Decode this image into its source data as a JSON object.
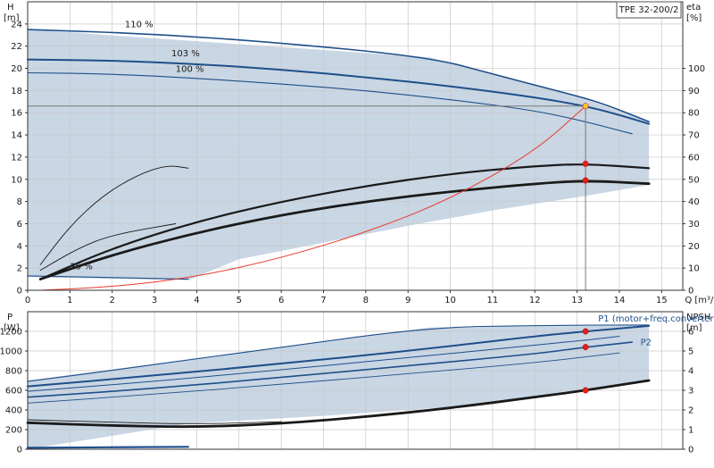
{
  "chart_data": [
    {
      "type": "line",
      "title": "TPE 32-200/2",
      "xlabel": "Q [m³/h]",
      "ylabel": "H\n[m]",
      "y2label": "eta\n[%]",
      "xlim": [
        0,
        15.5
      ],
      "ylim": [
        0,
        26
      ],
      "y2lim": [
        0,
        130
      ],
      "x_ticks": [
        0,
        1,
        2,
        3,
        4,
        5,
        6,
        7,
        8,
        9,
        10,
        11,
        12,
        13,
        14,
        15
      ],
      "y_ticks": [
        0,
        2,
        4,
        6,
        8,
        10,
        12,
        14,
        16,
        18,
        20,
        22,
        24
      ],
      "y2_ticks": [
        0,
        10,
        20,
        30,
        40,
        50,
        60,
        70,
        80,
        90,
        100
      ],
      "grid": true,
      "operating_region": [
        [
          0,
          23.5
        ],
        [
          9.5,
          21
        ],
        [
          13,
          17.5
        ],
        [
          14.7,
          15.2
        ],
        [
          14.7,
          9.5
        ],
        [
          13.2,
          8.5
        ],
        [
          11,
          7.2
        ],
        [
          9,
          5.8
        ],
        [
          7,
          4.3
        ],
        [
          5,
          2.8
        ],
        [
          3.8,
          0.9
        ],
        [
          0,
          1.2
        ]
      ],
      "series": [
        {
          "name": "110 %",
          "x": [
            0,
            3,
            6,
            9.5,
            11,
            12.5,
            13.5,
            14.7
          ],
          "values": [
            23.5,
            23.1,
            22.3,
            21.0,
            19.5,
            18.0,
            17.0,
            15.2
          ],
          "color": "#1e4f8a",
          "width": 1.6
        },
        {
          "name": "103 %",
          "x": [
            0,
            2,
            4,
            6,
            8,
            10,
            12,
            13.2,
            14,
            14.7
          ],
          "values": [
            20.8,
            20.7,
            20.4,
            19.9,
            19.2,
            18.4,
            17.4,
            16.6,
            15.8,
            15.0
          ],
          "color": "#1e4f8a",
          "width": 2
        },
        {
          "name": "100 %",
          "x": [
            0,
            2,
            4,
            6,
            8,
            10,
            12,
            13.2,
            14.3
          ],
          "values": [
            19.6,
            19.5,
            19.1,
            18.6,
            18.0,
            17.2,
            16.2,
            15.2,
            14.1
          ],
          "color": "#1e4f8a",
          "width": 1.1
        },
        {
          "name": "25 %",
          "x": [
            0,
            3.8
          ],
          "values": [
            1.3,
            1.0
          ],
          "color": "#1e4f8a",
          "width": 1.1
        },
        {
          "name": "",
          "x": [
            0.3,
            1,
            1.8,
            2.6,
            3.3,
            3.8
          ],
          "values": [
            2.3,
            5.8,
            8.6,
            10.4,
            11.3,
            11.0
          ],
          "color": "#1a1a1a",
          "width": 0.9
        },
        {
          "name": "",
          "x": [
            0.3,
            1.2,
            2,
            3.5
          ],
          "values": [
            1.8,
            3.8,
            5.0,
            6.0
          ],
          "color": "#1a1a1a",
          "width": 0.9
        },
        {
          "name": "",
          "x": [
            0.3,
            2,
            4,
            6,
            8,
            10,
            12,
            13.2,
            14.7
          ],
          "values": [
            1.0,
            3.8,
            6.2,
            8.0,
            9.4,
            10.5,
            11.2,
            11.4,
            11.0
          ],
          "color": "#1a1a1a",
          "width": 2.2
        },
        {
          "name": "",
          "x": [
            0.3,
            2,
            4,
            6,
            8,
            10,
            12,
            13.2,
            14.7
          ],
          "values": [
            1.0,
            3.2,
            5.2,
            6.8,
            8.0,
            8.9,
            9.6,
            9.9,
            9.6
          ],
          "color": "#1a1a1a",
          "width": 2.8
        },
        {
          "name": "",
          "x": [
            0.3,
            2,
            4,
            6,
            8,
            10,
            12,
            13.2
          ],
          "values": [
            0.0,
            0.3,
            1.2,
            2.9,
            5.2,
            8.2,
            12.5,
            16.6
          ],
          "color": "#e83a2a",
          "width": 1
        }
      ],
      "markers": [
        {
          "x": 13.2,
          "y": 16.6,
          "color": "#f6c431"
        },
        {
          "x": 13.2,
          "y": 11.4,
          "color": "#e3201b"
        },
        {
          "x": 13.2,
          "y": 9.9,
          "color": "#e3201b"
        }
      ],
      "duty_point": {
        "x": 13.2,
        "y": 16.6
      }
    },
    {
      "type": "line",
      "xlabel": "",
      "ylabel": "P\n[W]",
      "y2label": "NPSH\n[m]",
      "xlim": [
        0,
        15.5
      ],
      "ylim": [
        0,
        1400
      ],
      "y2lim": [
        0,
        7
      ],
      "y_ticks": [
        0,
        200,
        400,
        600,
        800,
        1000,
        1200
      ],
      "y2_ticks": [
        0,
        1,
        2,
        3,
        4,
        5,
        6
      ],
      "grid": true,
      "operating_region": [
        [
          0,
          700
        ],
        [
          9.5,
          1240
        ],
        [
          14.7,
          1260
        ],
        [
          14.7,
          700
        ],
        [
          11,
          460
        ],
        [
          7,
          340
        ],
        [
          3.8,
          260
        ],
        [
          0,
          0
        ]
      ],
      "series": [
        {
          "name": "P1 (motor+freq.converter)",
          "x": [
            0,
            3,
            6,
            9,
            12,
            13.2,
            14.7
          ],
          "values": [
            640,
            750,
            870,
            1000,
            1150,
            1200,
            1255
          ],
          "color": "#1e4f8a",
          "width": 2
        },
        {
          "name": "",
          "x": [
            0,
            3,
            6,
            9.5,
            12,
            14.7
          ],
          "values": [
            690,
            860,
            1040,
            1240,
            1260,
            1265
          ],
          "color": "#1e4f8a",
          "width": 1.1
        },
        {
          "name": "",
          "x": [
            0,
            3,
            6,
            9,
            12,
            13.2,
            14
          ],
          "values": [
            590,
            690,
            810,
            930,
            1060,
            1110,
            1150
          ],
          "color": "#1e4f8a",
          "width": 1
        },
        {
          "name": "P2",
          "x": [
            0,
            3,
            6,
            9,
            12,
            13.2,
            14.3
          ],
          "values": [
            530,
            620,
            730,
            850,
            970,
            1040,
            1090
          ],
          "color": "#1e4f8a",
          "width": 1.6
        },
        {
          "name": "",
          "x": [
            0,
            3,
            6,
            9,
            12,
            14
          ],
          "values": [
            470,
            560,
            660,
            770,
            880,
            980
          ],
          "color": "#1e4f8a",
          "width": 0.9
        },
        {
          "name": "",
          "x": [
            0,
            3.8
          ],
          "values": [
            15,
            25
          ],
          "color": "#1e4f8a",
          "width": 2.2
        },
        {
          "name": "",
          "x": [
            0,
            2,
            4,
            6,
            8,
            10,
            12,
            13.2,
            14.7
          ],
          "values": [
            270,
            240,
            225,
            260,
            330,
            420,
            530,
            600,
            700
          ],
          "color": "#1a1a1a",
          "width": 2.8
        },
        {
          "name": "",
          "x": [
            0,
            2,
            4,
            6
          ],
          "values": [
            300,
            275,
            255,
            280
          ],
          "color": "#1a1a1a",
          "width": 0.9
        }
      ],
      "markers": [
        {
          "x": 13.2,
          "y": 1200,
          "color": "#e3201b"
        },
        {
          "x": 13.2,
          "y": 1040,
          "color": "#e3201b"
        },
        {
          "x": 13.2,
          "y": 600,
          "color": "#e3201b"
        }
      ]
    }
  ],
  "annotations": {
    "top": [
      {
        "text": "110 %",
        "x": 2.3,
        "y": 23.7
      },
      {
        "text": "103 %",
        "x": 3.4,
        "y": 21.1
      },
      {
        "text": "100 %",
        "x": 3.5,
        "y": 19.7
      },
      {
        "text": "25 %",
        "x": 1.0,
        "y": 1.9
      }
    ],
    "bottom": [
      {
        "text": "P1 (motor+freq.converter)",
        "x": 13.5,
        "y": 1300
      },
      {
        "text": "P2",
        "x": 14.5,
        "y": 1060
      }
    ]
  }
}
